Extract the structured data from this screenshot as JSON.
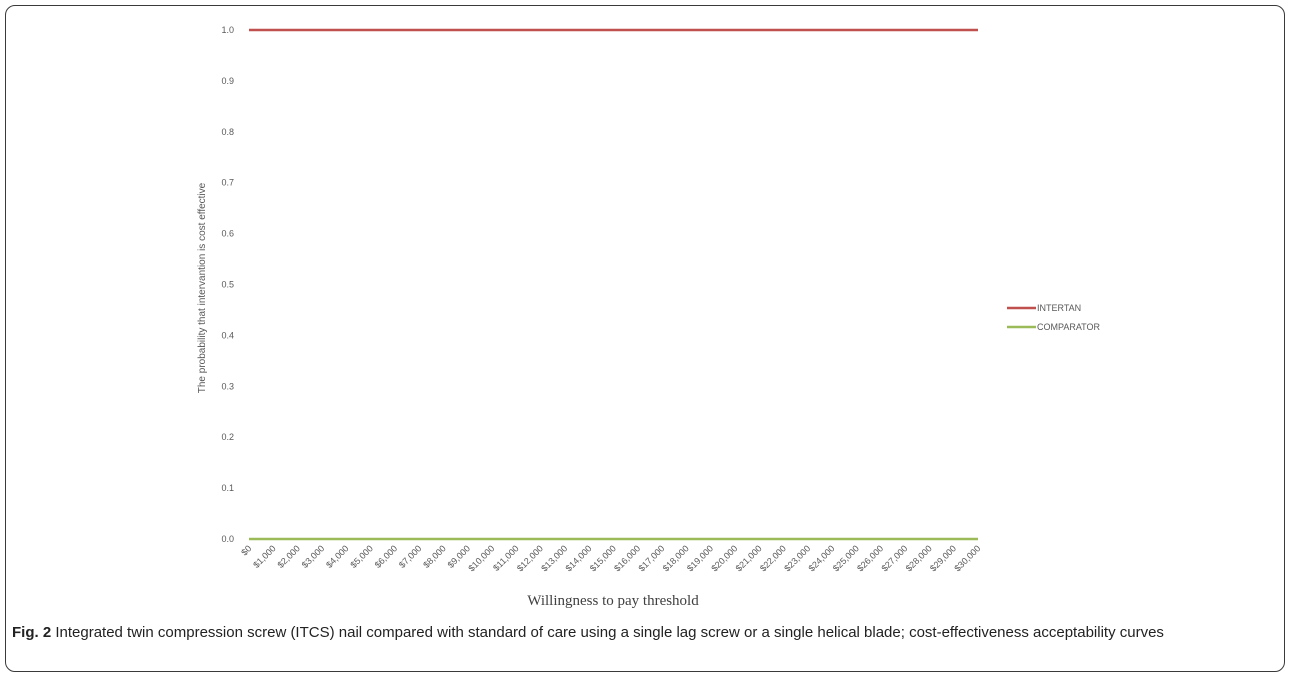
{
  "chart_data": {
    "type": "line",
    "title": "",
    "xlabel": "Willingness to pay threshold",
    "ylabel": "The probability that intervantion is cost effective",
    "categories": [
      "$0",
      "$1,000",
      "$2,000",
      "$3,000",
      "$4,000",
      "$5,000",
      "$6,000",
      "$7,000",
      "$8,000",
      "$9,000",
      "$10,000",
      "$11,000",
      "$12,000",
      "$13,000",
      "$14,000",
      "$15,000",
      "$16,000",
      "$17,000",
      "$18,000",
      "$19,000",
      "$20,000",
      "$21,000",
      "$22,000",
      "$23,000",
      "$24,000",
      "$25,000",
      "$26,000",
      "$27,000",
      "$28,000",
      "$29,000",
      "$30,000"
    ],
    "yticks": [
      "0.0",
      "0.1",
      "0.2",
      "0.3",
      "0.4",
      "0.5",
      "0.6",
      "0.7",
      "0.8",
      "0.9",
      "1.0"
    ],
    "ylim": [
      0,
      1
    ],
    "grid": false,
    "legend_position": "right",
    "series": [
      {
        "name": "INTERTAN",
        "color": "#c0504d",
        "values": [
          1,
          1,
          1,
          1,
          1,
          1,
          1,
          1,
          1,
          1,
          1,
          1,
          1,
          1,
          1,
          1,
          1,
          1,
          1,
          1,
          1,
          1,
          1,
          1,
          1,
          1,
          1,
          1,
          1,
          1,
          1
        ]
      },
      {
        "name": "COMPARATOR",
        "color": "#9bbb59",
        "values": [
          0,
          0,
          0,
          0,
          0,
          0,
          0,
          0,
          0,
          0,
          0,
          0,
          0,
          0,
          0,
          0,
          0,
          0,
          0,
          0,
          0,
          0,
          0,
          0,
          0,
          0,
          0,
          0,
          0,
          0,
          0
        ]
      }
    ]
  },
  "caption": {
    "label": "Fig. 2",
    "text": " Integrated twin compression screw (ITCS) nail compared with standard of care using a single lag screw or a single helical blade; cost-effectiveness acceptability curves"
  }
}
